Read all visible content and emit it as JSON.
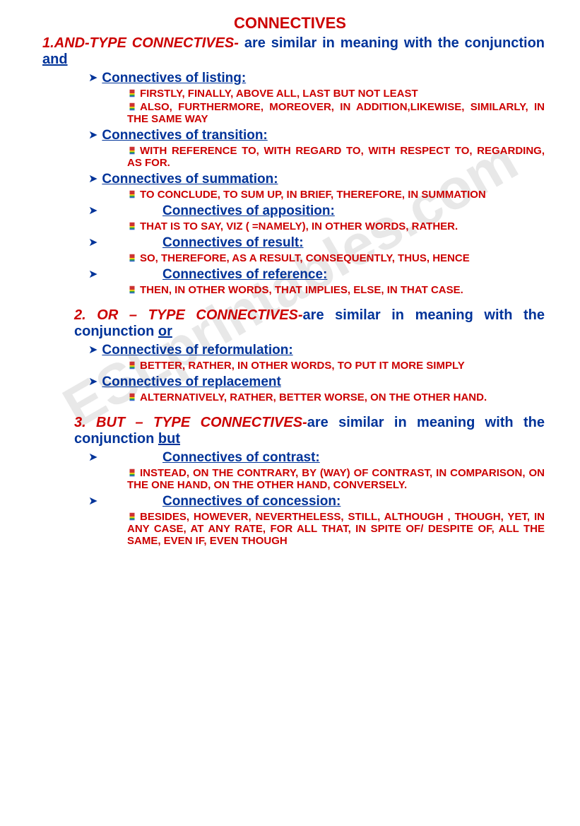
{
  "title": "CONNECTIVES",
  "watermark": "ESLprintables.com",
  "sections": [
    {
      "num": "1.",
      "heading_bold": "AND-TYPE CONNECTIVES- ",
      "heading_rest": "are similar in meaning with the conjunction ",
      "heading_ul": "and",
      "style": "align1",
      "subs": [
        {
          "title": "Connectives of listing:",
          "indent": false,
          "items": [
            "FIRSTLY, FINALLY, ABOVE ALL, LAST BUT NOT LEAST",
            "ALSO, FURTHERMORE, MOREOVER, IN ADDITION,LIKEWISE, SIMILARLY, IN THE SAME   WAY"
          ]
        },
        {
          "title": "Connectives of transition:",
          "indent": false,
          "items": [
            "WITH REFERENCE TO, WITH REGARD TO, WITH RESPECT TO, REGARDING, AS FOR."
          ]
        },
        {
          "title": "Connectives of summation:",
          "indent": false,
          "items": [
            "TO CONCLUDE, TO SUM UP, IN BRIEF, THEREFORE, IN SUMMATION"
          ]
        },
        {
          "title": "Connectives of apposition:",
          "indent": true,
          "items": [
            "THAT IS TO SAY, VIZ ( =NAMELY), IN OTHER WORDS, RATHER."
          ]
        },
        {
          "title": "Connectives of result:",
          "indent": true,
          "items": [
            "SO, THEREFORE, AS A RESULT, CONSEQUENTLY, THUS, HENCE"
          ]
        },
        {
          "title": "Connectives of reference:",
          "indent": true,
          "items": [
            "THEN, IN OTHER WORDS, THAT IMPLIES, ELSE, IN THAT CASE."
          ]
        }
      ]
    },
    {
      "num": "2.  ",
      "heading_bold": "OR – TYPE CONNECTIVES-",
      "heading_rest": "are similar in meaning with the conjunction ",
      "heading_ul": "or",
      "style": "align2",
      "subs": [
        {
          "title": "Connectives of reformulation:",
          "indent": false,
          "items": [
            "BETTER, RATHER, IN OTHER WORDS, TO PUT  IT MORE SIMPLY"
          ]
        },
        {
          "title": "Connectives of replacement",
          "indent": false,
          "items": [
            "ALTERNATIVELY, RATHER, BETTER WORSE, ON THE OTHER HAND."
          ]
        }
      ]
    },
    {
      "num": "3. ",
      "heading_bold": "BUT – TYPE CONNECTIVES-",
      "heading_rest": "are similar in meaning with the conjunction ",
      "heading_ul": "but",
      "style": "align2",
      "subs": [
        {
          "title": "Connectives of contrast:",
          "indent": true,
          "items": [
            "INSTEAD, ON THE CONTRARY, BY (WAY) OF CONTRAST, IN COMPARISON, ON THE ONE HAND, ON THE OTHER HAND, CONVERSELY."
          ]
        },
        {
          "title": "Connectives of concession:",
          "indent": true,
          "items": [
            "BESIDES, HOWEVER, NEVERTHELESS, STILL,  ALTHOUGH , THOUGH, YET, IN ANY CASE, AT ANY RATE, FOR ALL THAT, IN SPITE OF/ DESPITE OF, ALL THE SAME, EVEN IF, EVEN THOUGH"
          ]
        }
      ]
    }
  ]
}
